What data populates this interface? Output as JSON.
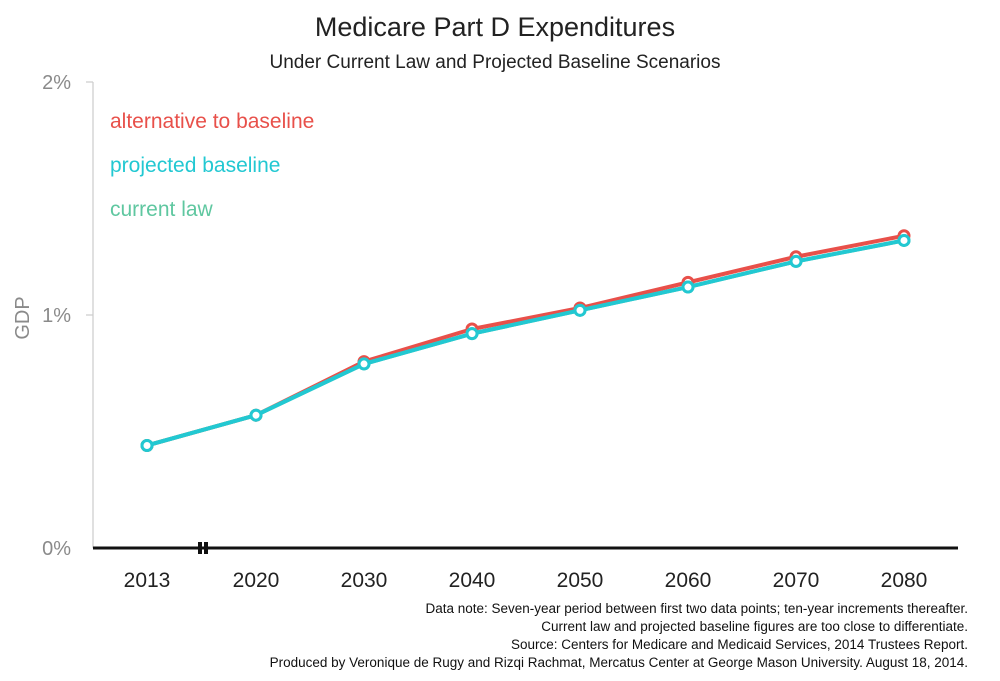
{
  "chart_data": {
    "type": "line",
    "title": "Medicare Part D Expenditures",
    "subtitle": "Under Current Law and Projected Baseline Scenarios",
    "ylabel": "GDP",
    "xlabel": "",
    "x": [
      "2013",
      "2020",
      "2030",
      "2040",
      "2050",
      "2060",
      "2070",
      "2080"
    ],
    "yticks": [
      0,
      1,
      2
    ],
    "ytick_labels": [
      "0%",
      "1%",
      "2%"
    ],
    "ylim": [
      0,
      2
    ],
    "grid": false,
    "legend_position": "top-left",
    "axis_break_between": [
      "2013",
      "2020"
    ],
    "series": [
      {
        "name": "alternative to baseline",
        "color": "#e8504a",
        "values": [
          0.44,
          0.57,
          0.8,
          0.94,
          1.03,
          1.14,
          1.25,
          1.34
        ]
      },
      {
        "name": "current law",
        "color": "#5fc7a0",
        "values": [
          0.44,
          0.57,
          0.79,
          0.92,
          1.02,
          1.12,
          1.23,
          1.32
        ]
      },
      {
        "name": "projected baseline",
        "color": "#22c8d2",
        "values": [
          0.44,
          0.57,
          0.79,
          0.92,
          1.02,
          1.12,
          1.23,
          1.32
        ]
      }
    ],
    "legend_order": [
      0,
      2,
      1
    ],
    "notes": [
      "Data note: Seven-year period between first two data points; ten-year increments thereafter.",
      "Current law and projected baseline figures are too close to differentiate.",
      "Source: Centers for Medicare and Medicaid Services, 2014 Trustees Report.",
      "Produced by Veronique de Rugy and Rizqi Rachmat, Mercatus Center at George Mason University. August 18, 2014."
    ]
  }
}
